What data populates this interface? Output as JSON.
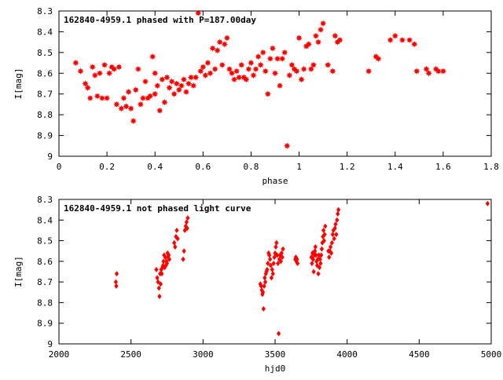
{
  "chart_data": [
    {
      "type": "scatter",
      "title": "162840-4959.1 phased with P=187.00day",
      "xlabel": "phase",
      "ylabel": "I[mag]",
      "xlim": [
        0,
        1.8
      ],
      "ylim": [
        9,
        8.3
      ],
      "y_inverted": true,
      "grid": false,
      "marker_color": "#ff0000",
      "marker": "star",
      "xticks": [
        "0",
        "0.2",
        "0.4",
        "0.6",
        "0.8",
        "1",
        "1.2",
        "1.4",
        "1.6",
        "1.8"
      ],
      "yticks": [
        "8.3",
        "8.4",
        "8.5",
        "8.6",
        "8.7",
        "8.8",
        "8.9",
        "9"
      ],
      "series": [
        {
          "points": [
            [
              0.07,
              8.55
            ],
            [
              0.09,
              8.59
            ],
            [
              0.11,
              8.65
            ],
            [
              0.12,
              8.67
            ],
            [
              0.13,
              8.72
            ],
            [
              0.14,
              8.57
            ],
            [
              0.15,
              8.61
            ],
            [
              0.16,
              8.71
            ],
            [
              0.17,
              8.6
            ],
            [
              0.18,
              8.72
            ],
            [
              0.19,
              8.56
            ],
            [
              0.2,
              8.72
            ],
            [
              0.21,
              8.6
            ],
            [
              0.22,
              8.57
            ],
            [
              0.23,
              8.58
            ],
            [
              0.24,
              8.75
            ],
            [
              0.25,
              8.57
            ],
            [
              0.26,
              8.77
            ],
            [
              0.27,
              8.72
            ],
            [
              0.28,
              8.76
            ],
            [
              0.29,
              8.69
            ],
            [
              0.3,
              8.77
            ],
            [
              0.31,
              8.83
            ],
            [
              0.32,
              8.68
            ],
            [
              0.33,
              8.58
            ],
            [
              0.34,
              8.75
            ],
            [
              0.35,
              8.72
            ],
            [
              0.36,
              8.64
            ],
            [
              0.37,
              8.72
            ],
            [
              0.38,
              8.71
            ],
            [
              0.39,
              8.52
            ],
            [
              0.4,
              8.6
            ],
            [
              0.4,
              8.7
            ],
            [
              0.41,
              8.66
            ],
            [
              0.42,
              8.78
            ],
            [
              0.43,
              8.63
            ],
            [
              0.44,
              8.74
            ],
            [
              0.45,
              8.62
            ],
            [
              0.46,
              8.67
            ],
            [
              0.47,
              8.64
            ],
            [
              0.48,
              8.7
            ],
            [
              0.49,
              8.65
            ],
            [
              0.5,
              8.68
            ],
            [
              0.51,
              8.66
            ],
            [
              0.52,
              8.63
            ],
            [
              0.53,
              8.69
            ],
            [
              0.54,
              8.65
            ],
            [
              0.55,
              8.62
            ],
            [
              0.56,
              8.66
            ],
            [
              0.57,
              8.62
            ],
            [
              0.58,
              8.31
            ],
            [
              0.59,
              8.59
            ],
            [
              0.6,
              8.57
            ],
            [
              0.61,
              8.61
            ],
            [
              0.62,
              8.55
            ],
            [
              0.63,
              8.6
            ],
            [
              0.64,
              8.48
            ],
            [
              0.65,
              8.58
            ],
            [
              0.66,
              8.49
            ],
            [
              0.67,
              8.45
            ],
            [
              0.68,
              8.56
            ],
            [
              0.69,
              8.46
            ],
            [
              0.7,
              8.43
            ],
            [
              0.71,
              8.58
            ],
            [
              0.72,
              8.6
            ],
            [
              0.73,
              8.63
            ],
            [
              0.74,
              8.59
            ],
            [
              0.75,
              8.62
            ],
            [
              0.76,
              8.56
            ],
            [
              0.77,
              8.62
            ],
            [
              0.78,
              8.63
            ],
            [
              0.79,
              8.58
            ],
            [
              0.8,
              8.55
            ],
            [
              0.81,
              8.61
            ],
            [
              0.82,
              8.58
            ],
            [
              0.83,
              8.52
            ],
            [
              0.84,
              8.56
            ],
            [
              0.85,
              8.5
            ],
            [
              0.86,
              8.59
            ],
            [
              0.87,
              8.7
            ],
            [
              0.88,
              8.53
            ],
            [
              0.89,
              8.48
            ],
            [
              0.9,
              8.6
            ],
            [
              0.91,
              8.53
            ],
            [
              0.92,
              8.66
            ],
            [
              0.93,
              8.53
            ],
            [
              0.94,
              8.5
            ],
            [
              0.95,
              8.95
            ],
            [
              0.96,
              8.61
            ],
            [
              0.97,
              8.56
            ],
            [
              0.98,
              8.58
            ],
            [
              0.99,
              8.59
            ],
            [
              1.0,
              8.43
            ],
            [
              1.01,
              8.63
            ],
            [
              1.02,
              8.58
            ],
            [
              1.03,
              8.47
            ],
            [
              1.04,
              8.46
            ],
            [
              1.05,
              8.58
            ],
            [
              1.06,
              8.56
            ],
            [
              1.07,
              8.42
            ],
            [
              1.08,
              8.45
            ],
            [
              1.09,
              8.39
            ],
            [
              1.1,
              8.36
            ],
            [
              1.12,
              8.56
            ],
            [
              1.14,
              8.59
            ],
            [
              1.15,
              8.42
            ],
            [
              1.16,
              8.45
            ],
            [
              1.17,
              8.44
            ],
            [
              1.29,
              8.59
            ],
            [
              1.32,
              8.52
            ],
            [
              1.33,
              8.53
            ],
            [
              1.38,
              8.44
            ],
            [
              1.4,
              8.42
            ],
            [
              1.43,
              8.44
            ],
            [
              1.46,
              8.44
            ],
            [
              1.48,
              8.46
            ],
            [
              1.49,
              8.59
            ],
            [
              1.53,
              8.58
            ],
            [
              1.54,
              8.6
            ],
            [
              1.57,
              8.58
            ],
            [
              1.58,
              8.59
            ],
            [
              1.6,
              8.59
            ]
          ]
        }
      ]
    },
    {
      "type": "scatter",
      "title": "162840-4959.1 not phased light curve",
      "xlabel": "hjd0",
      "ylabel": "I[mag]",
      "xlim": [
        2000,
        5000
      ],
      "ylim": [
        9,
        8.3
      ],
      "y_inverted": true,
      "grid": false,
      "marker_color": "#ff0000",
      "marker": "diamond",
      "xticks": [
        "2000",
        "2500",
        "3000",
        "3500",
        "4000",
        "4500",
        "5000"
      ],
      "yticks": [
        "8.3",
        "8.4",
        "8.5",
        "8.6",
        "8.7",
        "8.8",
        "8.9",
        "9"
      ],
      "series": [
        {
          "points": [
            [
              2395,
              8.7
            ],
            [
              2398,
              8.72
            ],
            [
              2401,
              8.66
            ],
            [
              2676,
              8.64
            ],
            [
              2682,
              8.68
            ],
            [
              2688,
              8.7
            ],
            [
              2694,
              8.73
            ],
            [
              2698,
              8.77
            ],
            [
              2702,
              8.66
            ],
            [
              2706,
              8.71
            ],
            [
              2710,
              8.64
            ],
            [
              2714,
              8.66
            ],
            [
              2718,
              8.63
            ],
            [
              2722,
              8.62
            ],
            [
              2726,
              8.6
            ],
            [
              2730,
              8.57
            ],
            [
              2734,
              8.63
            ],
            [
              2738,
              8.58
            ],
            [
              2742,
              8.62
            ],
            [
              2746,
              8.6
            ],
            [
              2750,
              8.61
            ],
            [
              2754,
              8.56
            ],
            [
              2758,
              8.58
            ],
            [
              2762,
              8.57
            ],
            [
              2766,
              8.59
            ],
            [
              2800,
              8.51
            ],
            [
              2806,
              8.53
            ],
            [
              2812,
              8.48
            ],
            [
              2818,
              8.45
            ],
            [
              2824,
              8.49
            ],
            [
              2862,
              8.59
            ],
            [
              2868,
              8.55
            ],
            [
              2874,
              8.45
            ],
            [
              2880,
              8.43
            ],
            [
              2886,
              8.41
            ],
            [
              2890,
              8.44
            ],
            [
              2894,
              8.39
            ],
            [
              3398,
              8.71
            ],
            [
              3403,
              8.72
            ],
            [
              3408,
              8.74
            ],
            [
              3412,
              8.76
            ],
            [
              3416,
              8.75
            ],
            [
              3420,
              8.83
            ],
            [
              3424,
              8.72
            ],
            [
              3428,
              8.68
            ],
            [
              3432,
              8.7
            ],
            [
              3436,
              8.66
            ],
            [
              3440,
              8.65
            ],
            [
              3445,
              8.64
            ],
            [
              3450,
              8.61
            ],
            [
              3455,
              8.56
            ],
            [
              3460,
              8.57
            ],
            [
              3465,
              8.59
            ],
            [
              3470,
              8.62
            ],
            [
              3475,
              8.68
            ],
            [
              3480,
              8.64
            ],
            [
              3485,
              8.66
            ],
            [
              3490,
              8.61
            ],
            [
              3495,
              8.58
            ],
            [
              3500,
              8.56
            ],
            [
              3505,
              8.53
            ],
            [
              3510,
              8.51
            ],
            [
              3515,
              8.57
            ],
            [
              3520,
              8.61
            ],
            [
              3525,
              8.95
            ],
            [
              3530,
              8.59
            ],
            [
              3535,
              8.57
            ],
            [
              3540,
              8.6
            ],
            [
              3545,
              8.56
            ],
            [
              3550,
              8.58
            ],
            [
              3555,
              8.54
            ],
            [
              3640,
              8.59
            ],
            [
              3644,
              8.58
            ],
            [
              3648,
              8.6
            ],
            [
              3652,
              8.59
            ],
            [
              3656,
              8.61
            ],
            [
              3752,
              8.58
            ],
            [
              3756,
              8.61
            ],
            [
              3760,
              8.56
            ],
            [
              3764,
              8.59
            ],
            [
              3768,
              8.65
            ],
            [
              3772,
              8.57
            ],
            [
              3776,
              8.55
            ],
            [
              3780,
              8.53
            ],
            [
              3784,
              8.57
            ],
            [
              3788,
              8.6
            ],
            [
              3792,
              8.62
            ],
            [
              3796,
              8.59
            ],
            [
              3800,
              8.66
            ],
            [
              3804,
              8.57
            ],
            [
              3808,
              8.63
            ],
            [
              3812,
              8.59
            ],
            [
              3816,
              8.61
            ],
            [
              3820,
              8.57
            ],
            [
              3824,
              8.54
            ],
            [
              3828,
              8.51
            ],
            [
              3832,
              8.48
            ],
            [
              3836,
              8.45
            ],
            [
              3840,
              8.5
            ],
            [
              3844,
              8.47
            ],
            [
              3848,
              8.43
            ],
            [
              3870,
              8.55
            ],
            [
              3875,
              8.58
            ],
            [
              3880,
              8.55
            ],
            [
              3885,
              8.53
            ],
            [
              3890,
              8.56
            ],
            [
              3895,
              8.51
            ],
            [
              3900,
              8.47
            ],
            [
              3905,
              8.45
            ],
            [
              3910,
              8.49
            ],
            [
              3915,
              8.44
            ],
            [
              3920,
              8.42
            ],
            [
              3925,
              8.47
            ],
            [
              3930,
              8.4
            ],
            [
              3935,
              8.37
            ],
            [
              3940,
              8.35
            ],
            [
              4975,
              8.32
            ]
          ]
        }
      ]
    }
  ]
}
